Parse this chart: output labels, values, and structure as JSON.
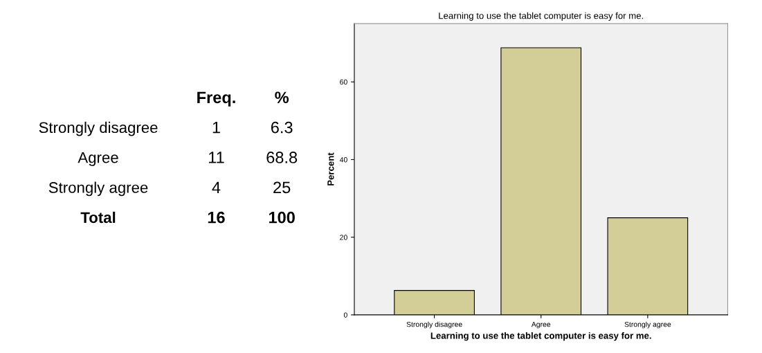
{
  "chart_data": [
    {
      "type": "other",
      "data_labels": true,
      "categories": [
        "Strongly disagree",
        "Agree",
        "Strongly agree",
        "Total"
      ],
      "series": [
        {
          "name": "Freq.",
          "color": "#000000",
          "values": [
            1,
            11,
            4,
            16
          ]
        },
        {
          "name": "%",
          "color": "#000000",
          "values": [
            6.3,
            68.8,
            25,
            100
          ]
        }
      ]
    },
    {
      "type": "bar",
      "title": "Learning to use the tablet computer is easy for me.",
      "xlabel": "Learning to use the tablet computer is easy for me.",
      "ylabel": "Percent",
      "categories": [
        "Strongly disagree",
        "Agree",
        "Strongly agree"
      ],
      "values": [
        6.3,
        68.8,
        25
      ],
      "color": "#d3ce98",
      "ylim": [
        0,
        75
      ],
      "yticks": [
        0,
        20,
        40,
        60
      ],
      "grid": false
    }
  ]
}
